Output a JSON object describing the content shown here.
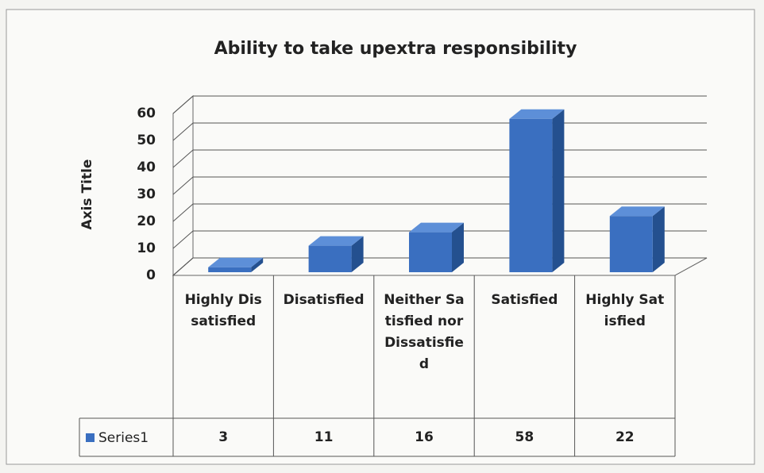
{
  "chart_data": {
    "type": "bar3d",
    "title": "Ability to take upextra responsibility",
    "y_label": "Axis Title",
    "categories": [
      "Highly Dissatisfied",
      "Disatisfied",
      "Neither Satisfied nor Dissatisfied",
      "Satisfied",
      "Highly Satisfied"
    ],
    "series": [
      {
        "name": "Series1",
        "color": "#3a6fc0",
        "values": [
          3,
          11,
          16,
          58,
          22
        ]
      }
    ],
    "ylim": [
      0,
      60
    ],
    "yticks": [
      0,
      10,
      20,
      30,
      40,
      50,
      60
    ],
    "grid": true,
    "data_table": true
  }
}
